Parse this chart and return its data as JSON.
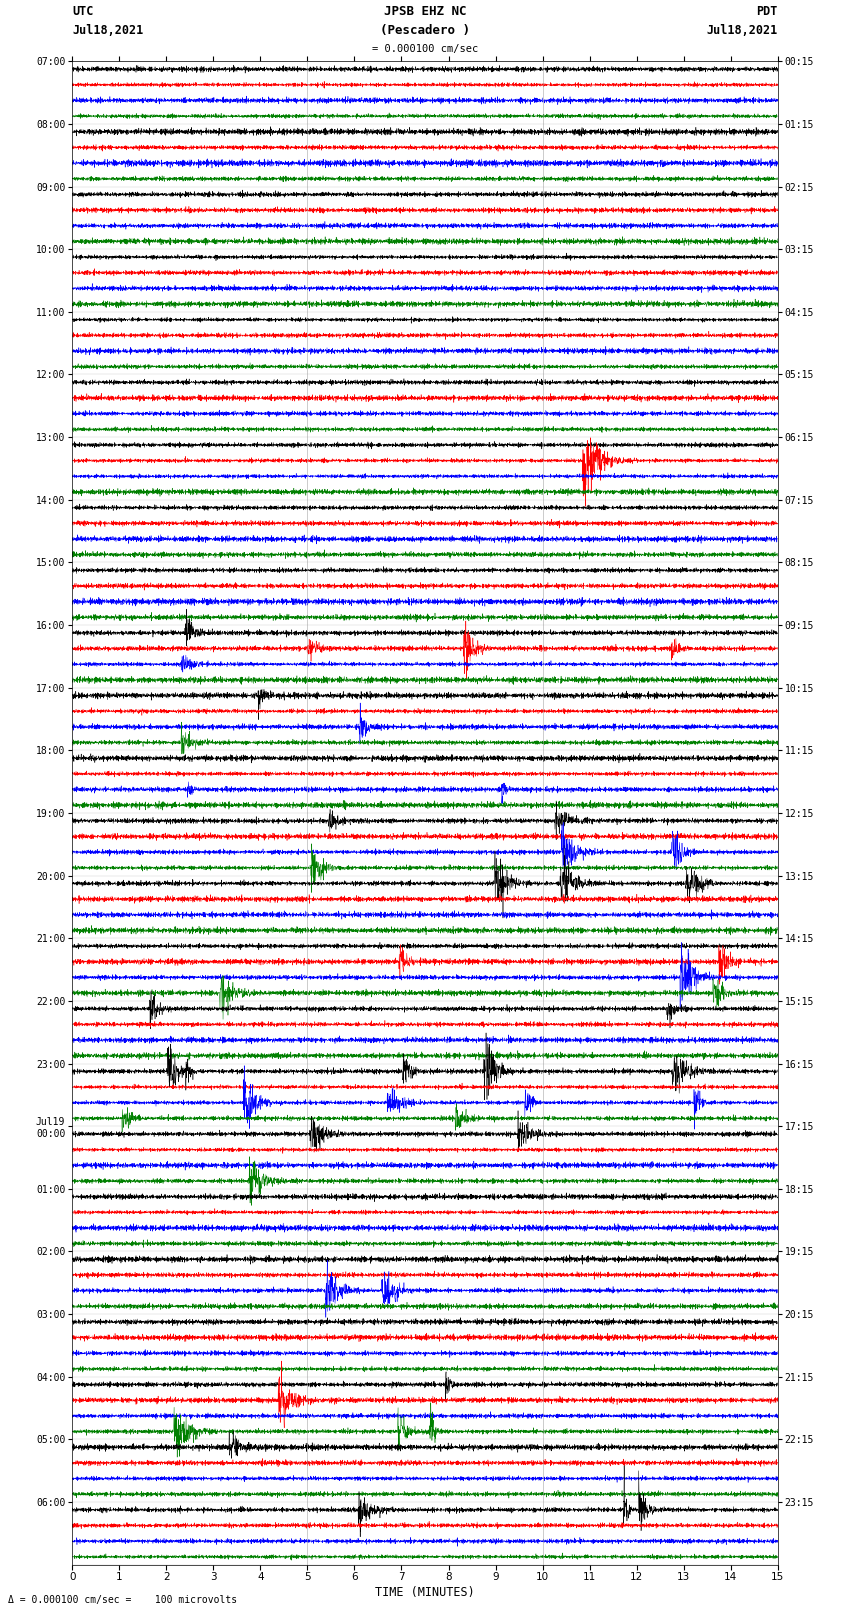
{
  "title_line1": "JPSB EHZ NC",
  "title_line2": "(Pescadero )",
  "title_line3": "= 0.000100 cm/sec",
  "xlabel": "TIME (MINUTES)",
  "footer": "Δ = 0.000100 cm/sec =    100 microvolts",
  "xlim": [
    0,
    15
  ],
  "xticks": [
    0,
    1,
    2,
    3,
    4,
    5,
    6,
    7,
    8,
    9,
    10,
    11,
    12,
    13,
    14,
    15
  ],
  "colors": [
    "black",
    "red",
    "blue",
    "green"
  ],
  "num_hour_groups": 24,
  "traces_per_group": 4,
  "utc_labels": [
    "07:00",
    "08:00",
    "09:00",
    "10:00",
    "11:00",
    "12:00",
    "13:00",
    "14:00",
    "15:00",
    "16:00",
    "17:00",
    "18:00",
    "19:00",
    "20:00",
    "21:00",
    "22:00",
    "23:00",
    "Jul19\n00:00",
    "01:00",
    "02:00",
    "03:00",
    "04:00",
    "05:00",
    "06:00"
  ],
  "pdt_labels": [
    "00:15",
    "01:15",
    "02:15",
    "03:15",
    "04:15",
    "05:15",
    "06:15",
    "07:15",
    "08:15",
    "09:15",
    "10:15",
    "11:15",
    "12:15",
    "13:15",
    "14:15",
    "15:15",
    "16:15",
    "17:15",
    "18:15",
    "19:15",
    "20:15",
    "21:15",
    "22:15",
    "23:15"
  ],
  "background_color": "white",
  "vline_color": "#999999",
  "vline_positions": [
    5,
    10
  ],
  "amplitude_base": 0.28,
  "n_samples": 3000,
  "noise_seed": 7
}
